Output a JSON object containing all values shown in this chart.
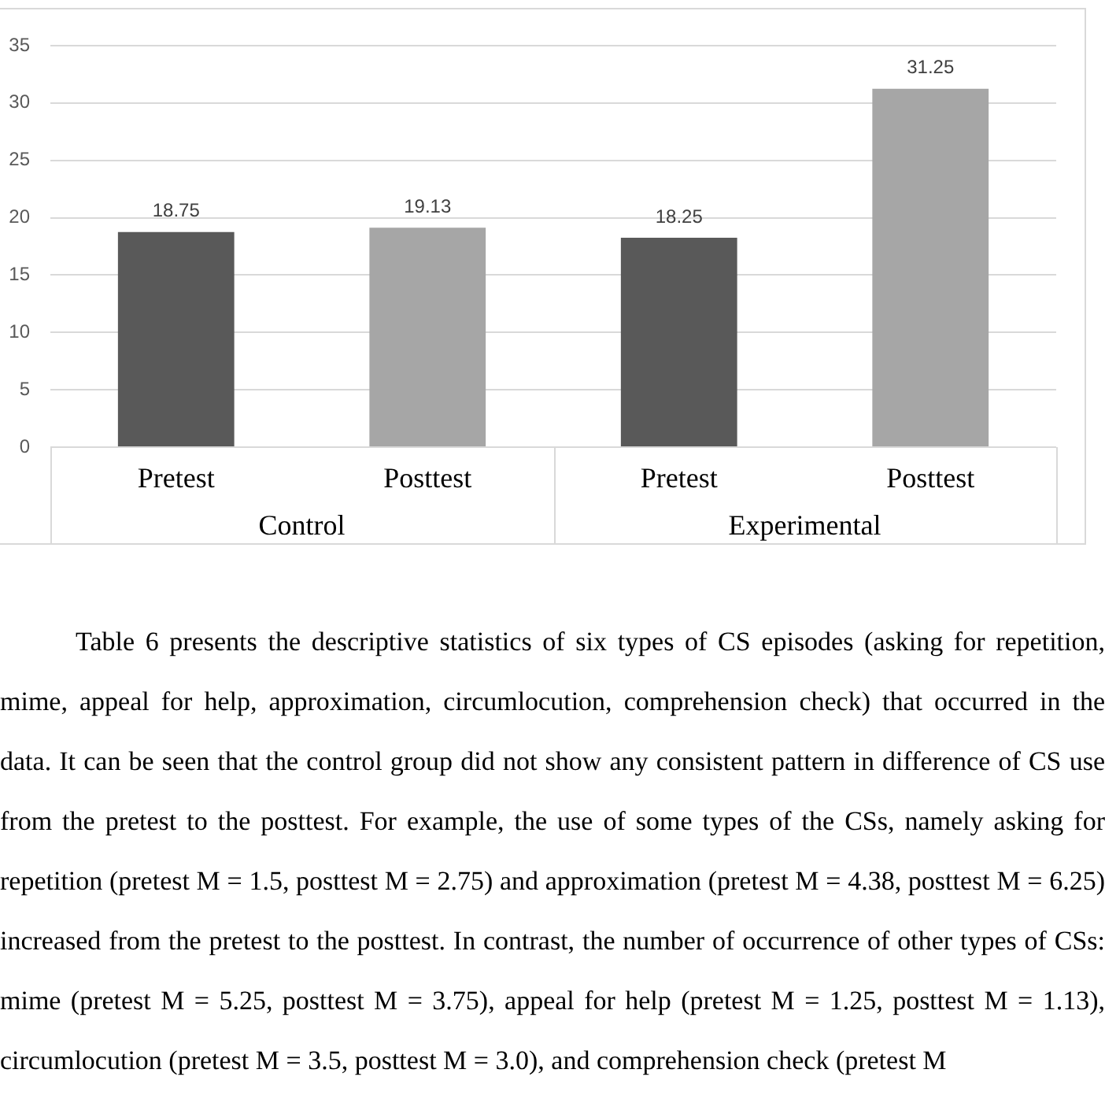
{
  "chart_data": {
    "type": "bar",
    "categories": [
      "Control",
      "Experimental"
    ],
    "series": [
      {
        "name": "Pretest",
        "color": "#595959",
        "values": [
          18.75,
          18.25
        ]
      },
      {
        "name": "Posttest",
        "color": "#a6a6a6",
        "values": [
          19.13,
          31.25
        ]
      }
    ],
    "ylim": [
      0,
      35
    ],
    "yticks": [
      0,
      5,
      10,
      15,
      20,
      25,
      30,
      35
    ],
    "grid": "y",
    "data_labels": true,
    "annotations": [
      "Table 6 presents the descriptive statistics of six types of CS episodes (asking for repetition, mime, appeal for help, approximation, circumlocution, comprehension check) that occurred in the data. It can be seen that the control group did not show any consistent pattern in difference of CS use from the pretest to the posttest. For example, the use of some types of the CSs, namely asking for repetition (pretest M = 1.5, posttest M = 2.75) and approximation (pretest M = 4.38, posttest M = 6.25) increased from the pretest to the posttest. In contrast, the number of occurrence of other types of CSs: mime (pretest M = 5.25, posttest M = 3.75), appeal for help (pretest M = 1.25, posttest M = 1.13), circumlocution (pretest M = 3.5, posttest M = 3.0), and comprehension check (pretest M"
    ]
  }
}
